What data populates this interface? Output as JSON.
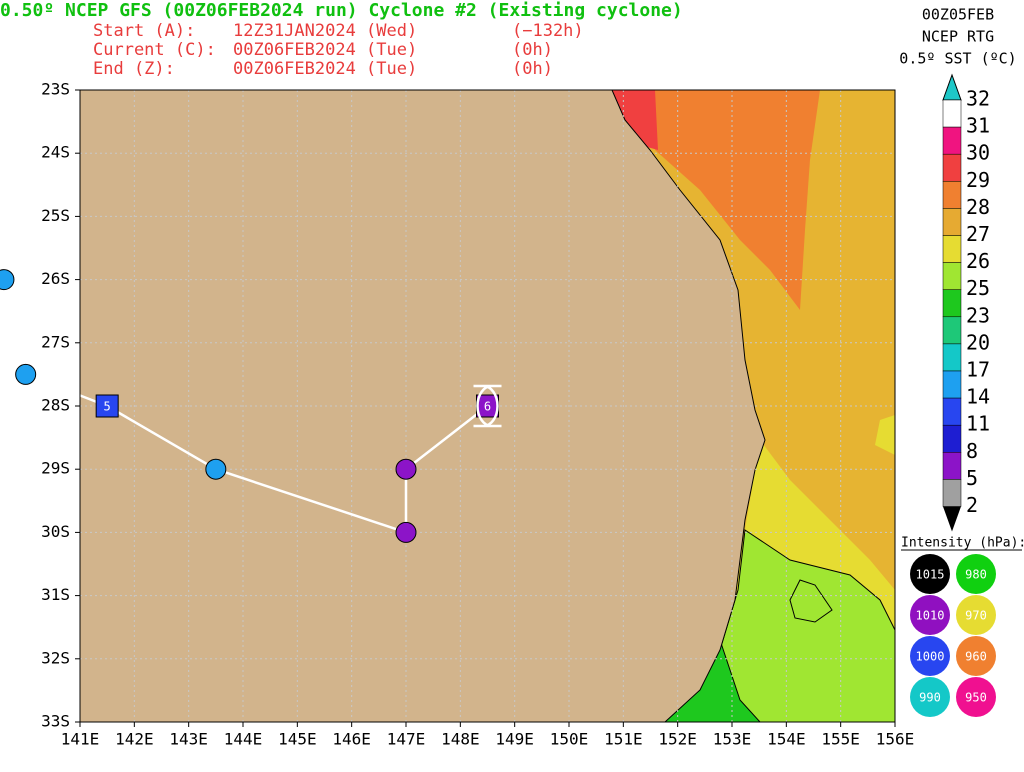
{
  "header": {
    "title": "0.50º NCEP GFS (00Z06FEB2024 run) Cyclone #2 (Existing cyclone)",
    "lines": [
      [
        "Start (A):",
        "12Z31JAN2024 (Wed)",
        "(−132h)"
      ],
      [
        "Current (C):",
        "00Z06FEB2024 (Tue)",
        "(0h)"
      ],
      [
        "End (Z):",
        "00Z06FEB2024 (Tue)",
        "(0h)"
      ]
    ]
  },
  "info": [
    "00Z05FEB",
    "NCEP RTG",
    "0.5º SST (ºC)"
  ],
  "map": {
    "xlim": [
      141,
      156
    ],
    "ylim": [
      -33,
      -23
    ],
    "grid": true,
    "xticks": [
      {
        "value": 141,
        "label": "141E"
      },
      {
        "value": 142,
        "label": "142E"
      },
      {
        "value": 143,
        "label": "143E"
      },
      {
        "value": 144,
        "label": "144E"
      },
      {
        "value": 145,
        "label": "145E"
      },
      {
        "value": 146,
        "label": "146E"
      },
      {
        "value": 147,
        "label": "147E"
      },
      {
        "value": 148,
        "label": "148E"
      },
      {
        "value": 149,
        "label": "149E"
      },
      {
        "value": 150,
        "label": "150E"
      },
      {
        "value": 151,
        "label": "151E"
      },
      {
        "value": 152,
        "label": "152E"
      },
      {
        "value": 153,
        "label": "153E"
      },
      {
        "value": 154,
        "label": "154E"
      },
      {
        "value": 155,
        "label": "155E"
      },
      {
        "value": 156,
        "label": "156E"
      }
    ],
    "yticks": [
      {
        "value": -23,
        "label": "23S"
      },
      {
        "value": -24,
        "label": "24S"
      },
      {
        "value": -25,
        "label": "25S"
      },
      {
        "value": -26,
        "label": "26S"
      },
      {
        "value": -27,
        "label": "27S"
      },
      {
        "value": -28,
        "label": "28S"
      },
      {
        "value": -29,
        "label": "29S"
      },
      {
        "value": -30,
        "label": "30S"
      },
      {
        "value": -31,
        "label": "31S"
      },
      {
        "value": -32,
        "label": "32S"
      },
      {
        "value": -33,
        "label": "33S"
      }
    ]
  },
  "track": {
    "color": "#ffffff",
    "points": [
      {
        "lon": 139.6,
        "lat": -26,
        "shape": "circle",
        "color": "#1ea0f0"
      },
      {
        "lon": 140.0,
        "lat": -27.5,
        "shape": "circle",
        "color": "#1ea0f0"
      },
      {
        "lon": 141.5,
        "lat": -28,
        "shape": "square",
        "color": "#2846f0",
        "label": "5"
      },
      {
        "lon": 143.5,
        "lat": -29,
        "shape": "circle",
        "color": "#1ea0f0"
      },
      {
        "lon": 147,
        "lat": -30,
        "shape": "circle",
        "color": "#8c14c8"
      },
      {
        "lon": 147,
        "lat": -29,
        "shape": "circle",
        "color": "#8c14c8"
      },
      {
        "lon": 148.5,
        "lat": -28,
        "shape": "square",
        "color": "#8c14c8",
        "label": "6"
      }
    ]
  },
  "colorbar": {
    "labels": [
      "32",
      "31",
      "30",
      "29",
      "28",
      "27",
      "26",
      "25",
      "23",
      "20",
      "17",
      "14",
      "11",
      "8",
      "5",
      "2"
    ],
    "colors": [
      "#ffffff",
      "#f01480",
      "#f04040",
      "#f08030",
      "#e6aa32",
      "#e6dc32",
      "#a0e632",
      "#1ec81e",
      "#1ec878",
      "#14c8c8",
      "#1ea0f0",
      "#2846f0",
      "#1e1ed2",
      "#8c14c8",
      "#a0a0a0"
    ],
    "top_color": "#1ec8c8",
    "bottom_color": "#000000"
  },
  "intensity": {
    "title": "Intensity (hPa):",
    "items": [
      {
        "label": "1015",
        "color": "#000000"
      },
      {
        "label": "980",
        "color": "#10d010"
      },
      {
        "label": "1010",
        "color": "#9010c0"
      },
      {
        "label": "970",
        "color": "#e6dc32"
      },
      {
        "label": "1000",
        "color": "#2846f0"
      },
      {
        "label": "960",
        "color": "#f08030"
      },
      {
        "label": "990",
        "color": "#14c8c8"
      },
      {
        "label": "950",
        "color": "#f01090"
      }
    ]
  }
}
